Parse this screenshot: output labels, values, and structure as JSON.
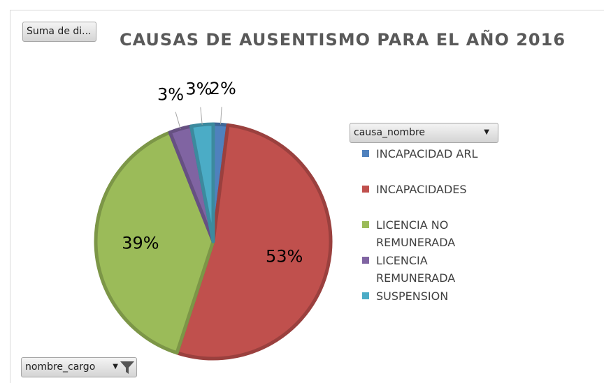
{
  "ui": {
    "value_button": "Suma de di...",
    "legend_field": "causa_nombre",
    "filter_field": "nombre_cargo"
  },
  "chart_data": {
    "type": "pie",
    "title": "CAUSAS DE AUSENTISMO PARA EL AÑO 2016",
    "categories": [
      "INCAPACIDAD ARL",
      "INCAPACIDADES",
      "LICENCIA NO REMUNERADA",
      "LICENCIA REMUNERADA",
      "SUSPENSION"
    ],
    "values": [
      2,
      53,
      39,
      3,
      3
    ],
    "value_labels": [
      "2%",
      "53%",
      "39%",
      "3%",
      "3%"
    ],
    "colors": [
      "#4f81bd",
      "#c0504d",
      "#9bbb59",
      "#8064a2",
      "#4bacc6"
    ]
  }
}
